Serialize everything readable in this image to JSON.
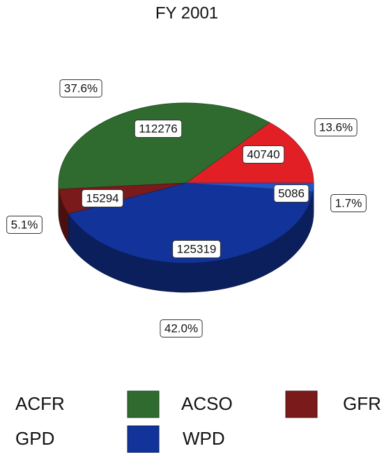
{
  "chart_data": {
    "type": "pie",
    "title": "FY 2001",
    "categories": [
      "ACFR",
      "ACSO",
      "GFR",
      "WPD",
      "GPD"
    ],
    "values": [
      40740,
      112276,
      15294,
      125319,
      5086
    ],
    "percentages": [
      13.6,
      37.6,
      5.1,
      42.0,
      1.7
    ],
    "percentage_labels": [
      "13.6%",
      "37.6%",
      "5.1%",
      "42.0%",
      "1.7%"
    ],
    "colors": [
      "#e31f26",
      "#2f6b2f",
      "#7b1a1a",
      "#123399",
      "#2455c8"
    ],
    "legend": "bottom"
  }
}
